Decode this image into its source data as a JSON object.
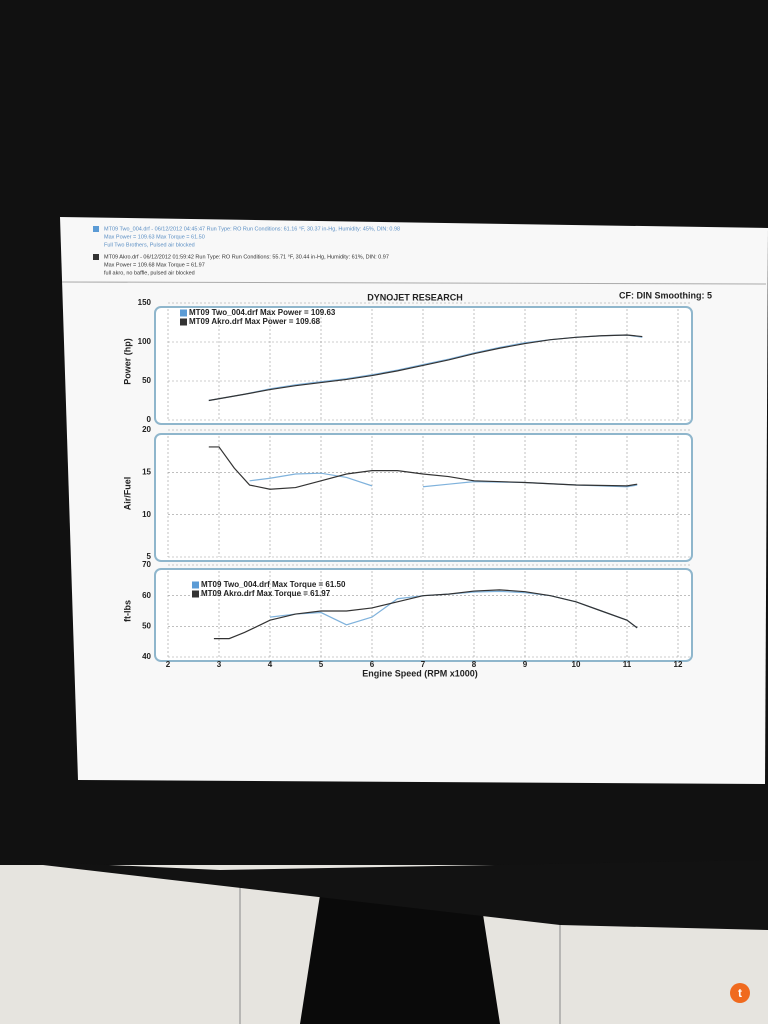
{
  "header": {
    "runs": [
      {
        "line": "MT09 Two_004.drf - 06/12/2012 04:45:47  Run Type: RO  Run Conditions: 61.16 °F, 30.37 in-Hg,  Humidity: 45%, DIN: 0.98",
        "stats": "Max Power = 109.63  Max Torque = 61.50",
        "note": "Full Two Brothers, Pulsed air blocked"
      },
      {
        "line": "MT09 Akro.drf - 06/12/2012 01:59:42  Run Type: RO  Run Conditions: 55.71 °F, 30.44 in-Hg,  Humidity: 61%, DIN: 0.97",
        "stats": "Max Power = 109.68  Max Torque = 61.97",
        "note": "full akro, no baffle, pulsed air blocked"
      }
    ]
  },
  "chart_data": [
    {
      "type": "line",
      "title": "DYNOJET RESEARCH",
      "subtitle": "CF: DIN  Smoothing: 5",
      "ylabel": "Power (hp)",
      "xlim": [
        2,
        12
      ],
      "ylim": [
        0,
        150
      ],
      "yticks": [
        0,
        50,
        100,
        150
      ],
      "grid": true,
      "x": [
        2.8,
        3.5,
        4,
        4.5,
        5,
        5.5,
        6,
        6.5,
        7,
        7.5,
        8,
        8.5,
        9,
        9.5,
        10,
        10.5,
        11,
        11.3
      ],
      "series": [
        {
          "name": "MT09 Two_004.drf Max Power = 109.63",
          "color": "#7fb2dc",
          "values": [
            25,
            33,
            40,
            45,
            49,
            53,
            58,
            64,
            71,
            78,
            86,
            93,
            99,
            103,
            106,
            108,
            109,
            106
          ]
        },
        {
          "name": "MT09 Akro.drf Max Power = 109.68",
          "color": "#333333",
          "values": [
            25,
            33,
            39,
            44,
            48,
            52,
            57,
            63,
            70,
            77,
            85,
            92,
            98,
            103,
            106,
            108,
            109,
            107
          ]
        }
      ]
    },
    {
      "type": "line",
      "ylabel": "Air/Fuel",
      "xlim": [
        2,
        12
      ],
      "ylim": [
        5,
        20
      ],
      "yticks": [
        5,
        10,
        15,
        20
      ],
      "grid": true,
      "x": [
        2.8,
        3,
        3.3,
        3.6,
        4,
        4.5,
        5,
        5.5,
        6,
        6.5,
        7,
        7.5,
        8,
        9,
        10,
        11,
        11.2
      ],
      "series": [
        {
          "color": "#7fb2dc",
          "values": [
            null,
            null,
            null,
            14.0,
            14.3,
            14.8,
            14.9,
            14.4,
            13.4,
            null,
            13.3,
            13.6,
            13.9,
            13.8,
            13.5,
            13.3,
            13.5
          ]
        },
        {
          "color": "#333333",
          "values": [
            18,
            18,
            15.5,
            13.5,
            13,
            13.2,
            14,
            14.8,
            15.2,
            15.2,
            14.8,
            14.5,
            14,
            13.8,
            13.5,
            13.4,
            13.6
          ]
        }
      ]
    },
    {
      "type": "line",
      "ylabel": "ft-lbs",
      "xlabel": "Engine Speed (RPM x1000)",
      "xlim": [
        2,
        12
      ],
      "xticks": [
        2,
        3,
        4,
        5,
        6,
        7,
        8,
        9,
        10,
        11,
        12
      ],
      "ylim": [
        40,
        70
      ],
      "yticks": [
        40,
        50,
        60,
        70
      ],
      "grid": true,
      "x": [
        2.9,
        3.2,
        3.5,
        4,
        4.5,
        5,
        5.5,
        6,
        6.5,
        7,
        7.5,
        8,
        8.5,
        9,
        9.5,
        10,
        10.5,
        11,
        11.2
      ],
      "series": [
        {
          "name": "MT09 Two_004.drf Max Torque = 61.50",
          "color": "#7fb2dc",
          "values": [
            null,
            null,
            null,
            53,
            54,
            54.5,
            50.5,
            53,
            59,
            60,
            60.5,
            61.2,
            61.4,
            61,
            60,
            58,
            55,
            52,
            49.5
          ]
        },
        {
          "name": "MT09 Akro.drf Max Torque = 61.97",
          "color": "#333333",
          "values": [
            46,
            46,
            48,
            52,
            54,
            55,
            55,
            56,
            58,
            60,
            60.5,
            61.5,
            61.9,
            61.3,
            60,
            58,
            55,
            52,
            49.5
          ]
        }
      ]
    }
  ]
}
